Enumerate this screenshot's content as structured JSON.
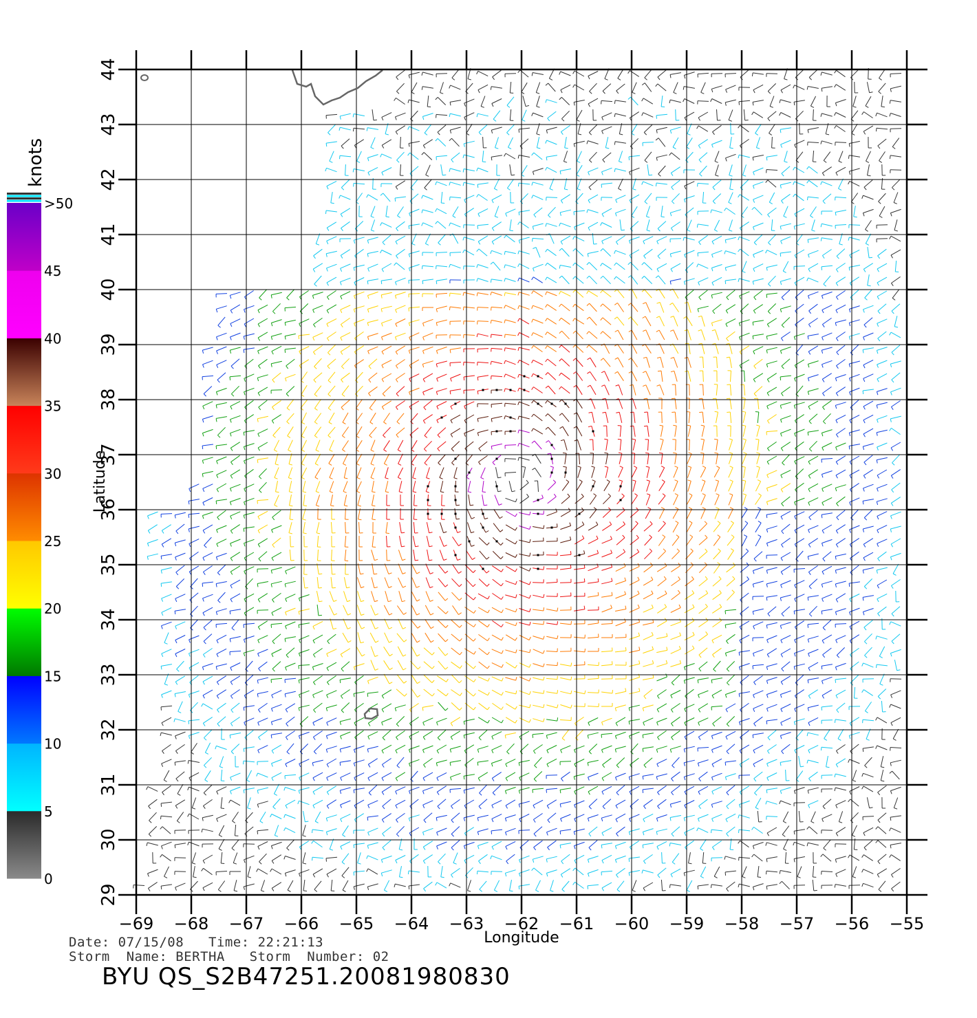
{
  "map": {
    "x_axis": {
      "label": "Longitude",
      "range": [
        -69,
        -55
      ],
      "ticks": [
        -69,
        -68,
        -67,
        -66,
        -65,
        -64,
        -63,
        -62,
        -61,
        -60,
        -59,
        -58,
        -57,
        -56,
        -55
      ]
    },
    "y_axis": {
      "label": "Latitude",
      "range": [
        29,
        44
      ],
      "ticks": [
        29,
        30,
        31,
        32,
        33,
        34,
        35,
        36,
        37,
        38,
        39,
        40,
        41,
        42,
        43,
        44
      ]
    },
    "grid": true,
    "storm_center": {
      "lon": -62.0,
      "lat": 36.6
    },
    "islands": [
      "Bermuda",
      "Nova Scotia coast"
    ]
  },
  "colorbar": {
    "title": "knots",
    "labels": [
      "0",
      "5",
      "10",
      "15",
      "20",
      "25",
      "30",
      "35",
      "40",
      "45",
      ">50"
    ],
    "stops": [
      {
        "from": 0,
        "to": 5,
        "top": "#2a2a2a",
        "bottom": "#8a8a8a"
      },
      {
        "from": 5,
        "to": 10,
        "top": "#00b4ff",
        "bottom": "#00ffff"
      },
      {
        "from": 10,
        "to": 15,
        "top": "#0000ff",
        "bottom": "#0078ff"
      },
      {
        "from": 15,
        "to": 20,
        "top": "#00ff00",
        "bottom": "#007800"
      },
      {
        "from": 20,
        "to": 25,
        "top": "#ffc800",
        "bottom": "#ffff00"
      },
      {
        "from": 25,
        "to": 30,
        "top": "#dd3300",
        "bottom": "#ff8c00"
      },
      {
        "from": 30,
        "to": 35,
        "top": "#ff0000",
        "bottom": "#ff3a1a"
      },
      {
        "from": 35,
        "to": 40,
        "top": "#3a0000",
        "bottom": "#c8845a"
      },
      {
        "from": 40,
        "to": 45,
        "top": "#ee00ee",
        "bottom": "#ff00ff"
      },
      {
        "from": 45,
        "to": 50,
        "top": "#6a00c8",
        "bottom": "#c000c8"
      }
    ]
  },
  "footer": {
    "line1": "Date: 07/15/08   Time: 22:21:13",
    "line2": "Storm  Name: BERTHA   Storm  Number: 02",
    "id": "BYU  QS_S2B47251.20081980830"
  }
}
